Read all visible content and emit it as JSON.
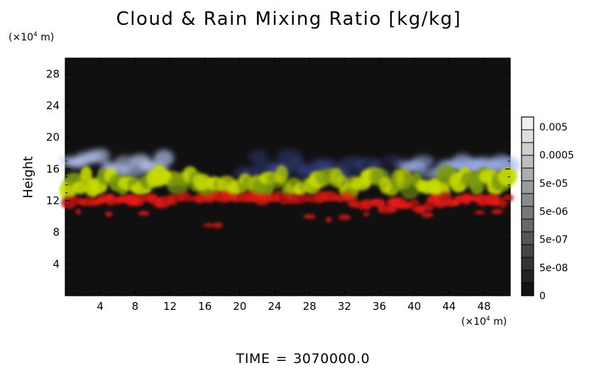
{
  "chart_data": {
    "type": "heatmap",
    "title": "Cloud & Rain Mixing Ratio [kg/kg]",
    "xlabel": "",
    "ylabel": "Height",
    "x_unit_prefix": "(×10",
    "x_unit_exp": "4",
    "x_unit_suffix": " m)",
    "y_unit_prefix": "(×10",
    "y_unit_exp": "4",
    "y_unit_suffix": " m)",
    "xlim": [
      0,
      51
    ],
    "ylim": [
      0,
      30
    ],
    "xticks": [
      4,
      8,
      12,
      16,
      20,
      24,
      28,
      32,
      36,
      40,
      44,
      48
    ],
    "yticks": [
      4,
      8,
      12,
      16,
      20,
      24,
      28
    ],
    "colorbar": {
      "labels": [
        "0.005",
        "0.0005",
        "5e-05",
        "5e-06",
        "5e-07",
        "5e-08",
        "0"
      ],
      "levels": 14
    },
    "colors": {
      "rain": "#e02020",
      "cloud": "#c8e000",
      "ice": "#8da4f0",
      "background": "#101010"
    },
    "layers": [
      {
        "name": "ice_upper",
        "x_range": [
          0,
          51
        ],
        "y_range": [
          16,
          20
        ]
      },
      {
        "name": "cloud_mid",
        "x_range": [
          0,
          51
        ],
        "y_range": [
          12,
          17
        ]
      },
      {
        "name": "rain_lower",
        "x_range": [
          0,
          51
        ],
        "y_range": [
          9,
          13
        ]
      }
    ],
    "time_label": "TIME",
    "time_eq": "=",
    "time_value": "3070000.0"
  }
}
